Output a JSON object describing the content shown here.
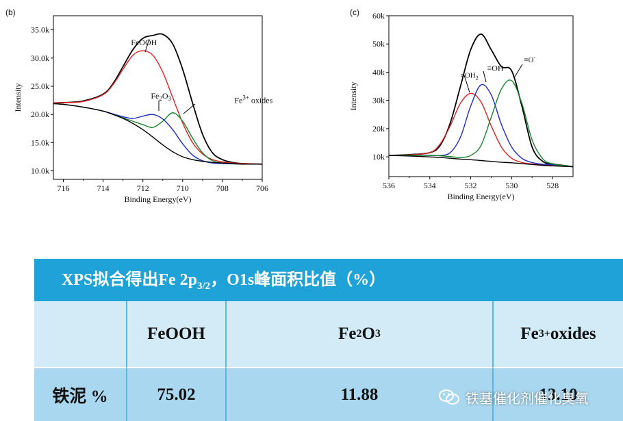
{
  "chart_data": [
    {
      "type": "line",
      "panel_label": "(b)",
      "xlabel": "Binding Energy(eV)",
      "ylabel": "Intensity",
      "xlim": [
        716.5,
        706
      ],
      "ylim": [
        8500,
        37500
      ],
      "x_reversed": true,
      "x_ticks": [
        716,
        714,
        712,
        710,
        708,
        706
      ],
      "y_ticks": [
        10000,
        15000,
        20000,
        25000,
        30000,
        35000
      ],
      "y_tick_labels": [
        "10.0k",
        "15.0k",
        "20.0k",
        "25.0k",
        "30.0k",
        "35.0k"
      ],
      "x": [
        717,
        716,
        715,
        714,
        713.5,
        713,
        712.5,
        712,
        711.5,
        711,
        710.5,
        710,
        709.5,
        709,
        708.5,
        708,
        707.5,
        707,
        706
      ],
      "series": [
        {
          "color": "#000000",
          "values": [
            22000,
            22100,
            22400,
            23600,
            25500,
            28500,
            31500,
            33500,
            34000,
            34200,
            32500,
            28000,
            22000,
            16500,
            13200,
            12000,
            11500,
            11300,
            11200
          ]
        },
        {
          "color": "#e02020",
          "values": [
            22000,
            22100,
            22300,
            23500,
            25300,
            28000,
            30500,
            31300,
            30500,
            27500,
            23000,
            18500,
            15000,
            13000,
            12000,
            11600,
            11400,
            11300,
            11200
          ]
        },
        {
          "color": "#1a2ac8",
          "values": [
            22000,
            21800,
            21300,
            20600,
            20100,
            19600,
            19300,
            19700,
            20000,
            19200,
            17300,
            14800,
            12800,
            11800,
            11400,
            11300,
            11250,
            11200,
            11200
          ]
        },
        {
          "color": "#18862a",
          "values": [
            22000,
            21800,
            21300,
            20600,
            20000,
            19400,
            18800,
            18200,
            17700,
            18800,
            20300,
            18800,
            15800,
            13200,
            11800,
            11400,
            11300,
            11200,
            11200
          ]
        },
        {
          "color": "#000000",
          "values": [
            22000,
            21800,
            21300,
            20600,
            20000,
            19300,
            18400,
            17300,
            16000,
            14600,
            13400,
            12500,
            12000,
            11700,
            11500,
            11400,
            11300,
            11200,
            11200
          ]
        }
      ],
      "annotations": [
        {
          "text": "FeOOH",
          "x": 712.6,
          "y": 32300
        },
        {
          "text": "Fe2O3",
          "x": 711.6,
          "y": 22800
        },
        {
          "text": "Fe3+ oxides",
          "x": 707.4,
          "y": 22000
        }
      ]
    },
    {
      "type": "line",
      "panel_label": "(c)",
      "xlabel": "Binding Energy(eV)",
      "ylabel": "Intensity",
      "xlim": [
        536,
        527
      ],
      "ylim": [
        3000,
        60000
      ],
      "x_reversed": true,
      "x_ticks": [
        536,
        534,
        532,
        530,
        528
      ],
      "y_ticks": [
        10000,
        20000,
        30000,
        40000,
        50000,
        60000
      ],
      "y_tick_labels": [
        "10k",
        "20k",
        "30k",
        "40k",
        "50k",
        "60k"
      ],
      "x": [
        536,
        535,
        534,
        533.5,
        533,
        532.5,
        532,
        531.5,
        531,
        530.5,
        530,
        529.5,
        529,
        528.5,
        528,
        527
      ],
      "series": [
        {
          "color": "#000000",
          "values": [
            10500,
            10800,
            11500,
            14000,
            22000,
            35000,
            48000,
            53500,
            48000,
            42000,
            40500,
            28000,
            13500,
            8500,
            7500,
            6500
          ]
        },
        {
          "color": "#e02020",
          "values": [
            10500,
            10700,
            11500,
            14500,
            21000,
            29000,
            32500,
            29500,
            21000,
            13500,
            9500,
            8000,
            7500,
            7200,
            7000,
            6500
          ]
        },
        {
          "color": "#1a2ac8",
          "values": [
            10500,
            10600,
            10600,
            10500,
            11500,
            17000,
            28000,
            35500,
            32000,
            21500,
            13500,
            9500,
            8000,
            7400,
            7200,
            6500
          ]
        },
        {
          "color": "#18862a",
          "values": [
            10500,
            10600,
            10500,
            10400,
            10100,
            9800,
            10500,
            14000,
            24000,
            34000,
            37000,
            29000,
            16000,
            9500,
            7500,
            6500
          ]
        },
        {
          "color": "#000000",
          "values": [
            10500,
            10300,
            10000,
            9800,
            9500,
            9200,
            9000,
            8700,
            8400,
            8100,
            7900,
            7600,
            7300,
            7000,
            6800,
            6500
          ]
        }
      ],
      "annotations": [
        {
          "text": "≡OH2",
          "x": 532.5,
          "y": 38000
        },
        {
          "text": "≡OH",
          "x": 531.2,
          "y": 40500
        },
        {
          "text": "≡O-",
          "x": 529.4,
          "y": 43500
        }
      ]
    }
  ],
  "table": {
    "title_prefix": "XPS拟合得出Fe 2p",
    "title_sub": "3/2",
    "title_suffix": "，O1s峰面积比值（%）",
    "headers": {
      "c1": "FeOOH",
      "c2_base": "Fe",
      "c2_sub1": "2",
      "c2_mid": "O",
      "c2_sub2": "3",
      "c3_base": "Fe",
      "c3_sup": "3+",
      "c3_rest": "oxides"
    },
    "row": {
      "label": "铁泥 %",
      "feooh": "75.02",
      "fe2o3": "11.88",
      "fe3_oxides": "13.10"
    }
  },
  "watermark": {
    "text": "铁基催化剂催化臭氧"
  }
}
